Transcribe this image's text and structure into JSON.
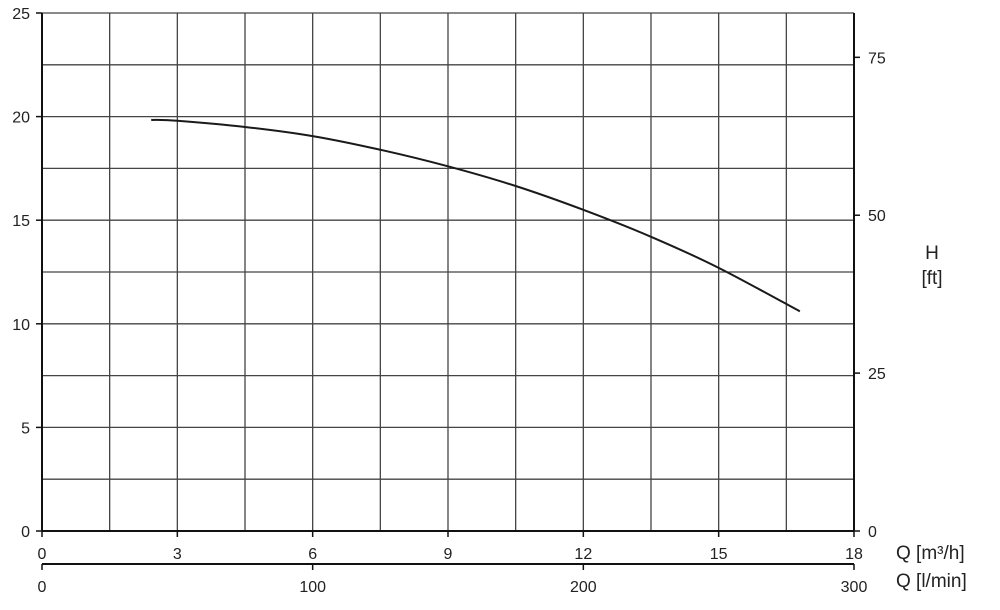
{
  "chart_data": {
    "type": "line",
    "title": "",
    "xlabel": "Q [m³/h]",
    "xlabel_secondary": "Q [l/min]",
    "ylabel": "",
    "ylabel_right": "H",
    "ylabel_right_unit": "[ft]",
    "xlim": [
      0,
      18
    ],
    "ylim": [
      0,
      25
    ],
    "x_ticks": [
      0,
      3,
      6,
      9,
      12,
      15,
      18
    ],
    "x_secondary_ticks": [
      0,
      100,
      200,
      300
    ],
    "x_secondary_range": [
      0,
      300
    ],
    "y_ticks": [
      0,
      5,
      10,
      15,
      20,
      25
    ],
    "y_right_ticks": [
      0,
      25,
      50,
      75
    ],
    "y_right_range_ft_per_m": 3.2808,
    "grid": true,
    "grid_x_step": 1.5,
    "grid_y_step": 2.5,
    "line_color": "#1a1a1a",
    "series": [
      {
        "x": [
          2.42,
          3,
          4.5,
          6,
          7.5,
          9,
          10.5,
          12,
          13.5,
          15,
          16.8
        ],
        "y": [
          19.84,
          19.8,
          19.5,
          19.06,
          18.4,
          17.6,
          16.65,
          15.5,
          14.2,
          12.7,
          10.6
        ]
      }
    ]
  }
}
